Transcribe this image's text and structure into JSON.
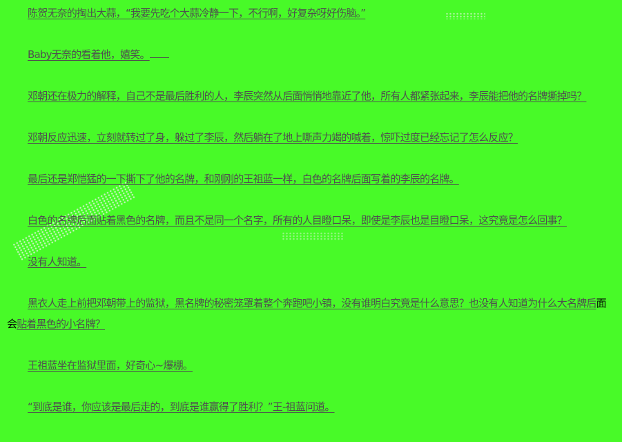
{
  "page": {
    "background_color": "#48fa28",
    "link_text_color": "#4f4f4f",
    "plain_text_color": "#000000"
  },
  "watermark": {
    "style": "diagonal-speckle-noise",
    "visible": true
  },
  "paragraphs": [
    {
      "segments": [
        {
          "style": "link",
          "text": "陈贺无奈的掏出大蒜，“我要先吃个大蒜冷静一下，不行啊，好复杂呀好伤脑。”"
        }
      ]
    },
    {
      "segments": [
        {
          "style": "link",
          "text": "Baby无奈的看着他，嬉笑。"
        },
        {
          "style": "tail"
        }
      ]
    },
    {
      "segments": [
        {
          "style": "link",
          "text": "邓朝还在极力的解释，自己不是最后胜利的人，李辰突然从后面悄悄地靠近了他，所有人都紧张起来，李辰能把他的名牌撕掉吗？"
        }
      ]
    },
    {
      "segments": [
        {
          "style": "link",
          "text": "邓朝反应迅速，立刻就转过了身，躲过了李辰，然后躺在了地上嘶声力竭的喊着，惊吓过度已经忘记了怎么反应？"
        }
      ]
    },
    {
      "segments": [
        {
          "style": "link",
          "text": "最后还是郑恺猛的一下撕下了他的名牌，和刚刚的王祖蓝一样，白色的名牌后面写着的李辰的名牌。"
        }
      ]
    },
    {
      "segments": [
        {
          "style": "link",
          "text": "白色的名牌后面贴着黑色的名牌，而且不是同一个名字，所有的人目瞪口呆，即使是李辰也是目瞪口呆，这究竟是怎么回事？"
        }
      ]
    },
    {
      "segments": [
        {
          "style": "link",
          "text": "没有人知道。"
        }
      ]
    },
    {
      "segments": [
        {
          "style": "link",
          "text": "黑衣人走上前把邓朝带上的监狱，黑名牌的秘密笼罩着整个奔跑吧小镇，没有谁明白究竟是什么意思？也没有人知道为什么大名牌后"
        },
        {
          "style": "plain",
          "text": "面会"
        },
        {
          "style": "link",
          "text": "贴着黑色的小名牌？"
        }
      ]
    },
    {
      "segments": [
        {
          "style": "link",
          "text": "王祖蓝坐在监狱里面，好奇心~爆棚。"
        }
      ]
    },
    {
      "segments": [
        {
          "style": "link",
          "text": "“到底是谁，你应该是最后走的，到底是谁赢得了胜利？”王-祖蓝问道。"
        }
      ]
    }
  ]
}
